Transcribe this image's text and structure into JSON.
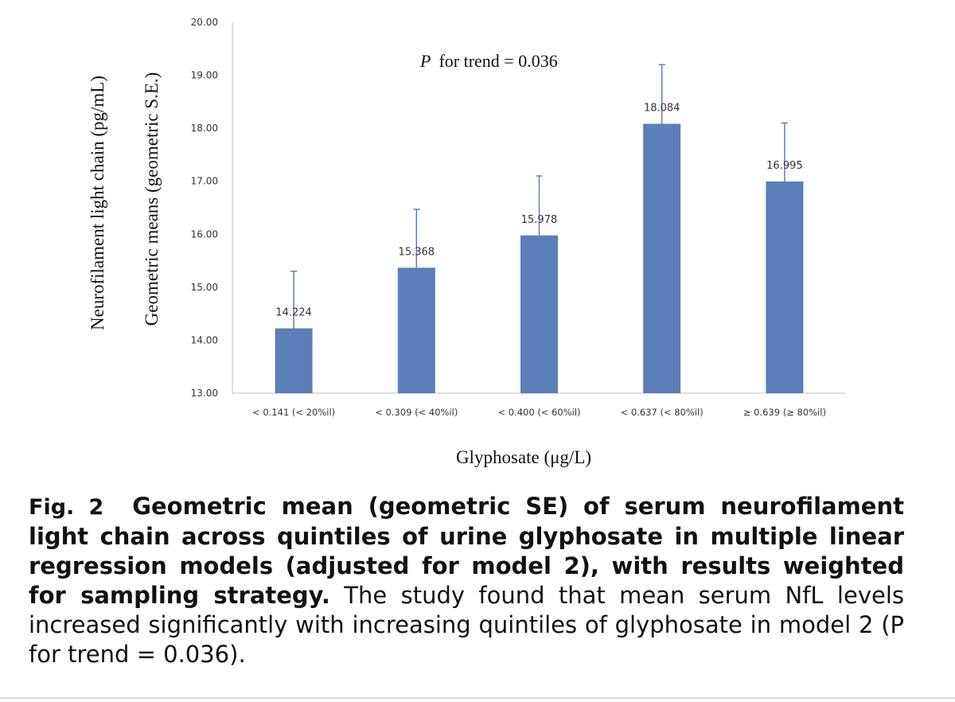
{
  "chart_data": {
    "type": "bar",
    "categories": [
      "< 0.141 (< 20%il)",
      "< 0.309 (< 40%il)",
      "< 0.400 (< 60%il)",
      "< 0.637 (< 80%il)",
      "≥ 0.639 (≥ 80%il)"
    ],
    "values": [
      14.224,
      15.368,
      15.978,
      18.084,
      16.995
    ],
    "data_labels": [
      "14.224",
      "15.368",
      "15.978",
      "18.084",
      "16.995"
    ],
    "error_upper": [
      15.3,
      16.47,
      17.1,
      19.2,
      18.1
    ],
    "ylim": [
      13,
      20
    ],
    "yticks": [
      "13.00",
      "14.00",
      "15.00",
      "16.00",
      "17.00",
      "18.00",
      "19.00",
      "20.00"
    ],
    "ylabel_line1": "Neurofilament light chain (pg/mL)",
    "ylabel_line2": "Geometric means (geometric S.E.)",
    "xlabel": "Glyphosate (μg/L)",
    "annotation_italic": "P",
    "annotation_rest": "for trend = 0.036",
    "bar_color": "#5b7fb8",
    "grid": false
  },
  "caption": {
    "fig_label": "Fig. 2",
    "bold_text": "Geometric mean (geometric SE) of serum neurofilament light chain across quintiles of urine glyphosate in multiple linear regression models (adjusted for model 2), with results weighted for sampling strategy.",
    "plain_text": "The study found that mean serum NfL levels increased significantly with increasing quintiles of glyphosate in model 2 (P for trend = 0.036)."
  }
}
